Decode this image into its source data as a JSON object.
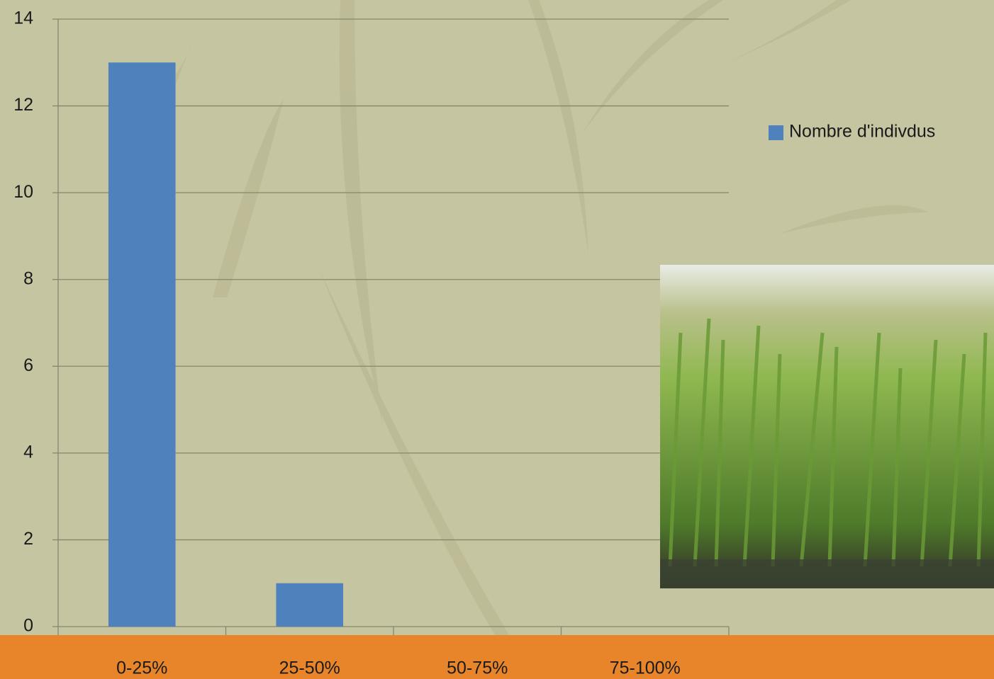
{
  "chart_data": {
    "type": "bar",
    "categories": [
      "0-25%",
      "25-50%",
      "50-75%",
      "75-100%"
    ],
    "series": [
      {
        "name": "Nombre d'indivdus",
        "color": "#4f81bd",
        "values": [
          13,
          1,
          0,
          0
        ]
      }
    ],
    "ylim": [
      0,
      14
    ],
    "yticks": [
      0,
      2,
      4,
      6,
      8,
      10,
      12,
      14
    ],
    "grid": true,
    "legend": "right"
  }
}
